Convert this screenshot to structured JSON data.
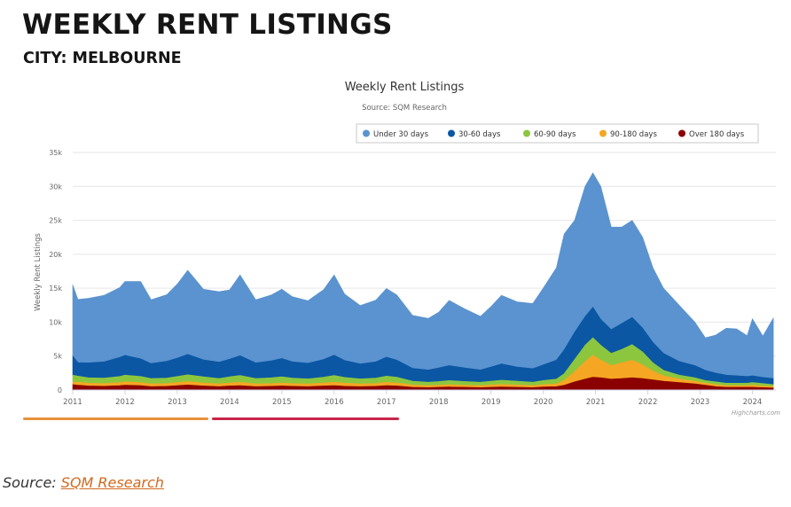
{
  "page": {
    "heading": "WEEKLY RENT LISTINGS",
    "subheading": "CITY: MELBOURNE",
    "source_prefix": "Source: ",
    "source_link": "SQM Research"
  },
  "chart_data": {
    "type": "area",
    "stacked": true,
    "title": "Weekly Rent Listings",
    "subtitle": "Source: SQM Research",
    "ylabel": "Weekly Rent Listings",
    "xlabel": "",
    "credit": "Highcharts.com",
    "ylim": [
      0,
      35000
    ],
    "yticks": [
      0,
      5000,
      10000,
      15000,
      20000,
      25000,
      30000,
      35000
    ],
    "ytick_labels": [
      "0",
      "5k",
      "10k",
      "15k",
      "20k",
      "25k",
      "30k",
      "35k"
    ],
    "xlim": [
      2011,
      2024.45
    ],
    "xticks": [
      2011,
      2012,
      2013,
      2014,
      2015,
      2016,
      2017,
      2018,
      2019,
      2020,
      2021,
      2022,
      2023,
      2024
    ],
    "legend_position": "top-right",
    "grid": true,
    "x": [
      2011.0,
      2011.1,
      2011.3,
      2011.6,
      2011.9,
      2012.0,
      2012.3,
      2012.5,
      2012.8,
      2013.0,
      2013.2,
      2013.5,
      2013.8,
      2014.0,
      2014.2,
      2014.5,
      2014.8,
      2015.0,
      2015.2,
      2015.5,
      2015.8,
      2016.0,
      2016.2,
      2016.5,
      2016.8,
      2017.0,
      2017.2,
      2017.5,
      2017.8,
      2018.0,
      2018.2,
      2018.5,
      2018.8,
      2019.0,
      2019.2,
      2019.5,
      2019.8,
      2020.0,
      2020.25,
      2020.4,
      2020.6,
      2020.8,
      2020.95,
      2021.1,
      2021.3,
      2021.5,
      2021.7,
      2021.9,
      2022.1,
      2022.3,
      2022.6,
      2022.9,
      2023.1,
      2023.3,
      2023.5,
      2023.7,
      2023.9,
      2024.0,
      2024.2,
      2024.4
    ],
    "series": [
      {
        "name": "Over 180 days",
        "color": "#8b0000",
        "values": [
          800,
          700,
          600,
          550,
          650,
          700,
          650,
          500,
          550,
          650,
          750,
          600,
          500,
          600,
          650,
          500,
          550,
          600,
          550,
          500,
          600,
          650,
          550,
          500,
          550,
          650,
          600,
          400,
          350,
          400,
          450,
          400,
          350,
          400,
          450,
          400,
          350,
          450,
          500,
          700,
          1200,
          1600,
          1900,
          1800,
          1600,
          1700,
          1800,
          1700,
          1500,
          1300,
          1100,
          900,
          700,
          500,
          400,
          400,
          400,
          400,
          350,
          300
        ]
      },
      {
        "name": "90-180 days",
        "color": "#f5a623",
        "values": [
          400,
          450,
          400,
          400,
          450,
          500,
          450,
          400,
          400,
          450,
          500,
          450,
          400,
          450,
          500,
          400,
          400,
          450,
          400,
          400,
          450,
          500,
          450,
          400,
          400,
          500,
          450,
          350,
          300,
          300,
          350,
          300,
          300,
          350,
          400,
          350,
          300,
          350,
          400,
          700,
          1500,
          2600,
          3200,
          2600,
          2000,
          2300,
          2600,
          2000,
          1300,
          800,
          500,
          400,
          300,
          300,
          250,
          250,
          250,
          300,
          250,
          200
        ]
      },
      {
        "name": "60-90 days",
        "color": "#8cc63f",
        "values": [
          1000,
          900,
          800,
          800,
          900,
          1000,
          900,
          800,
          800,
          900,
          1000,
          900,
          800,
          900,
          1000,
          800,
          850,
          900,
          800,
          750,
          850,
          1000,
          850,
          750,
          800,
          900,
          850,
          550,
          500,
          550,
          600,
          550,
          500,
          550,
          600,
          550,
          500,
          600,
          700,
          1000,
          1800,
          2400,
          2600,
          2200,
          1800,
          2000,
          2300,
          1900,
          1200,
          800,
          600,
          500,
          400,
          400,
          350,
          350,
          350,
          400,
          350,
          300
        ]
      },
      {
        "name": "30-60 days",
        "color": "#0b57a4",
        "values": [
          2800,
          2000,
          2200,
          2400,
          2800,
          2900,
          2600,
          2200,
          2500,
          2700,
          3000,
          2500,
          2400,
          2600,
          2900,
          2300,
          2500,
          2700,
          2400,
          2300,
          2600,
          3000,
          2500,
          2200,
          2400,
          2800,
          2500,
          1900,
          1800,
          2000,
          2200,
          2000,
          1800,
          2100,
          2400,
          2100,
          2000,
          2300,
          2800,
          3500,
          4000,
          4200,
          4500,
          3800,
          3500,
          3800,
          4000,
          3500,
          3000,
          2500,
          2000,
          1800,
          1500,
          1300,
          1200,
          1100,
          1000,
          1000,
          900,
          900
        ]
      },
      {
        "name": "Under 30 days",
        "color": "#5a93cf",
        "values": [
          10500,
          9300,
          9500,
          9800,
          10300,
          10900,
          11400,
          9400,
          9800,
          10900,
          12400,
          10400,
          10400,
          10200,
          11900,
          9300,
          9700,
          10200,
          9600,
          9200,
          10300,
          11800,
          9800,
          8600,
          9100,
          10100,
          9600,
          7800,
          7600,
          8200,
          9600,
          8700,
          7900,
          8900,
          10100,
          9600,
          9600,
          11300,
          13600,
          17100,
          16500,
          19200,
          19800,
          19600,
          15100,
          14200,
          14300,
          13400,
          11000,
          9600,
          8300,
          6400,
          4800,
          5600,
          6900,
          6900,
          6000,
          8400,
          6100,
          8900
        ]
      }
    ],
    "legend": [
      "Under 30 days",
      "30-60 days",
      "60-90 days",
      "90-180 days",
      "Over 180 days"
    ]
  }
}
